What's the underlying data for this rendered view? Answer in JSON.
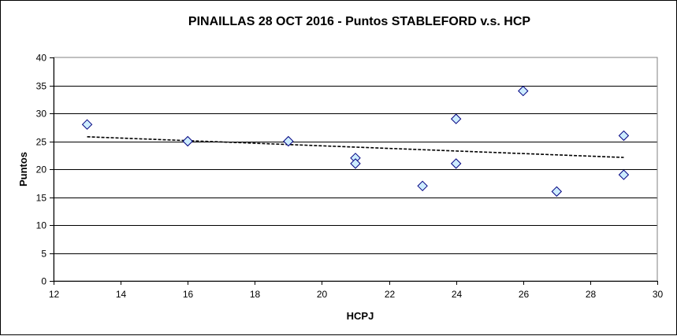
{
  "chart_data": {
    "type": "scatter",
    "title": "PINAILLAS 28 OCT 2016 - Puntos STABLEFORD v.s. HCP",
    "xlabel": "HCPJ",
    "ylabel": "Puntos",
    "xlim": [
      12,
      30
    ],
    "ylim": [
      0,
      40
    ],
    "x_ticks": [
      12,
      14,
      16,
      18,
      20,
      22,
      24,
      26,
      28,
      30
    ],
    "y_ticks": [
      0,
      5,
      10,
      15,
      20,
      25,
      30,
      35,
      40
    ],
    "grid": "horizontal",
    "series": [
      {
        "points": [
          {
            "x": 13,
            "y": 28
          },
          {
            "x": 16,
            "y": 25
          },
          {
            "x": 19,
            "y": 25
          },
          {
            "x": 21,
            "y": 22
          },
          {
            "x": 21,
            "y": 21
          },
          {
            "x": 23,
            "y": 17
          },
          {
            "x": 24,
            "y": 29
          },
          {
            "x": 24,
            "y": 21
          },
          {
            "x": 26,
            "y": 34
          },
          {
            "x": 27,
            "y": 16
          },
          {
            "x": 29,
            "y": 26
          },
          {
            "x": 29,
            "y": 19
          }
        ],
        "marker": "diamond",
        "color": "#CCECFF",
        "edge_color": "#000080"
      }
    ],
    "trendline": {
      "type": "linear",
      "style": "dashed",
      "from": {
        "x": 13,
        "y": 25.8
      },
      "to": {
        "x": 29,
        "y": 22.1
      }
    }
  }
}
